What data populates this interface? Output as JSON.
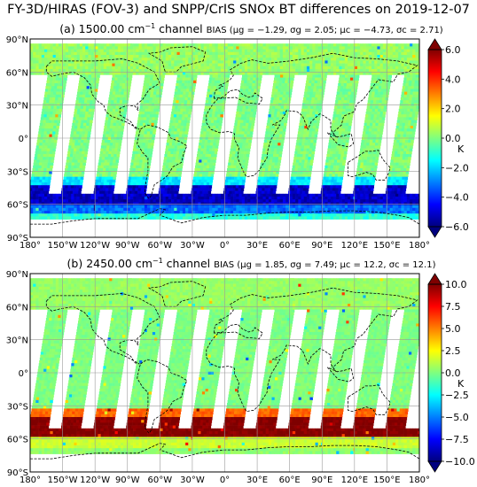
{
  "title": "FY-3D/HIRAS (FOV-3) and SNPP/CrIS SNOx BT differences on 2019-12-07",
  "colors": {
    "colormap": [
      "#00007f",
      "#0000ff",
      "#007fff",
      "#00ffff",
      "#7fff7f",
      "#ffff00",
      "#ff7f00",
      "#ff0000",
      "#7f0000"
    ],
    "coast": "#000000",
    "grid": "#9a9a9a",
    "gap": "#ffffff"
  },
  "chart_data": [
    {
      "type": "heatmap",
      "panel": "a",
      "title_prefix": "(a) 1500.00 cm",
      "title_sup": "−1",
      "title_suffix": " channel",
      "bias_label": "BIAS (μg = −1.29, σg = 2.05; μc = −4.73, σc = 2.71)",
      "bias": {
        "mu_g": -1.29,
        "sigma_g": 2.05,
        "mu_c": -4.73,
        "sigma_c": 2.71
      },
      "x_ticks": [
        "180°",
        "150°W",
        "120°W",
        "90°W",
        "60°W",
        "30°W",
        "0°",
        "30°E",
        "60°E",
        "90°E",
        "120°E",
        "150°E",
        "180°"
      ],
      "y_ticks": [
        "90°N",
        "60°N",
        "30°N",
        "0°",
        "30°S",
        "60°S",
        "90°S"
      ],
      "xlim": [
        -180,
        180
      ],
      "ylim": [
        -90,
        90
      ],
      "colorbar": {
        "min": -6,
        "max": 6,
        "ticks": [
          "6.0",
          "4.0",
          "2.0",
          "0.0",
          "−2.0",
          "−4.0",
          "−6.0"
        ],
        "unit": "K"
      },
      "field": [
        {
          "lat_from": 90,
          "lat_to": 60,
          "value": 0.3
        },
        {
          "lat_from": 60,
          "lat_to": -35,
          "value": 0.0
        },
        {
          "lat_from": -35,
          "lat_to": -42,
          "value": -1.8
        },
        {
          "lat_from": -42,
          "lat_to": -60,
          "value": -5.2
        },
        {
          "lat_from": -60,
          "lat_to": -66,
          "value": -3.2
        },
        {
          "lat_from": -66,
          "lat_to": -73,
          "value": -1.0
        }
      ]
    },
    {
      "type": "heatmap",
      "panel": "b",
      "title_prefix": "(b) 2450.00 cm",
      "title_sup": "−1",
      "title_suffix": " channel",
      "bias_label": "BIAS (μg = 1.85, σg = 7.49; μc = 12.2, σc = 12.1)",
      "bias": {
        "mu_g": 1.85,
        "sigma_g": 7.49,
        "mu_c": 12.2,
        "sigma_c": 12.1
      },
      "x_ticks": [
        "180°",
        "150°W",
        "120°W",
        "90°W",
        "60°W",
        "30°W",
        "0°",
        "30°E",
        "60°E",
        "90°E",
        "120°E",
        "150°E",
        "180°"
      ],
      "y_ticks": [
        "90°N",
        "60°N",
        "30°N",
        "0°",
        "30°S",
        "60°S",
        "90°S"
      ],
      "xlim": [
        -180,
        180
      ],
      "ylim": [
        -90,
        90
      ],
      "colorbar": {
        "min": -10,
        "max": 10,
        "ticks": [
          "10.0",
          "7.5",
          "5.0",
          "2.5",
          "0.0",
          "−2.5",
          "−5.0",
          "−7.5",
          "−10.0"
        ],
        "unit": "K"
      },
      "field": [
        {
          "lat_from": 90,
          "lat_to": 60,
          "value": 0.5
        },
        {
          "lat_from": 60,
          "lat_to": -30,
          "value": 0.0
        },
        {
          "lat_from": -30,
          "lat_to": -38,
          "value": 5.5
        },
        {
          "lat_from": -38,
          "lat_to": -58,
          "value": 10.0
        },
        {
          "lat_from": -58,
          "lat_to": -66,
          "value": 1.5
        },
        {
          "lat_from": -66,
          "lat_to": -73,
          "value": 0.3
        }
      ]
    }
  ]
}
